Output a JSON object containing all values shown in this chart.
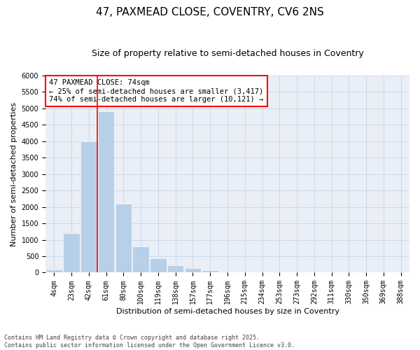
{
  "title": "47, PAXMEAD CLOSE, COVENTRY, CV6 2NS",
  "subtitle": "Size of property relative to semi-detached houses in Coventry",
  "xlabel": "Distribution of semi-detached houses by size in Coventry",
  "ylabel": "Number of semi-detached properties",
  "categories": [
    "4sqm",
    "23sqm",
    "42sqm",
    "61sqm",
    "80sqm",
    "100sqm",
    "119sqm",
    "138sqm",
    "157sqm",
    "177sqm",
    "196sqm",
    "215sqm",
    "234sqm",
    "253sqm",
    "273sqm",
    "292sqm",
    "311sqm",
    "330sqm",
    "350sqm",
    "369sqm",
    "388sqm"
  ],
  "values": [
    100,
    1200,
    4000,
    4900,
    2100,
    800,
    430,
    230,
    130,
    70,
    20,
    8,
    3,
    2,
    1,
    0,
    0,
    0,
    0,
    0,
    0
  ],
  "bar_color": "#b8cfe8",
  "grid_color": "#cdd8e8",
  "background_color": "#eaeff7",
  "vline_color": "red",
  "vline_pos": 2.5,
  "annotation_text": "47 PAXMEAD CLOSE: 74sqm\n← 25% of semi-detached houses are smaller (3,417)\n74% of semi-detached houses are larger (10,121) →",
  "ylim": [
    0,
    6000
  ],
  "yticks": [
    0,
    500,
    1000,
    1500,
    2000,
    2500,
    3000,
    3500,
    4000,
    4500,
    5000,
    5500,
    6000
  ],
  "footnote": "Contains HM Land Registry data © Crown copyright and database right 2025.\nContains public sector information licensed under the Open Government Licence v3.0.",
  "title_fontsize": 11,
  "subtitle_fontsize": 9,
  "axis_label_fontsize": 8,
  "tick_fontsize": 7,
  "annotation_fontsize": 7.5,
  "footnote_fontsize": 6
}
